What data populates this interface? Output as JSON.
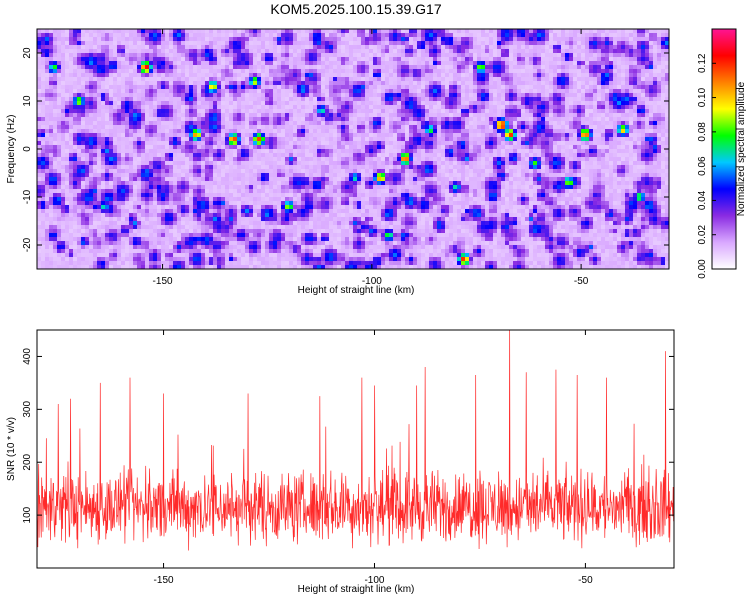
{
  "title": "KOM5.2025.100.15.39.G17",
  "chart_data": [
    {
      "type": "heatmap",
      "xlabel": "Height of straight line (km)",
      "ylabel": "Frequency (Hz)",
      "xlim": [
        -180,
        -29
      ],
      "ylim": [
        -25,
        25
      ],
      "x_ticks": [
        -150,
        -100,
        -50
      ],
      "y_ticks": [
        -20,
        -10,
        0,
        10,
        20
      ],
      "colorbar": {
        "label": "Normalized spectral amplitude",
        "range": [
          0,
          0.14
        ],
        "ticks": [
          0.0,
          0.02,
          0.04,
          0.06,
          0.08,
          0.1,
          0.12
        ],
        "tick_labels": [
          "0.00",
          "0.02",
          "0.04",
          "0.06",
          "0.08",
          "0.10",
          "0.12"
        ],
        "colors": [
          "#ffffff",
          "#d9a8ff",
          "#8a2be2",
          "#0000ff",
          "#00c8ff",
          "#00ff00",
          "#ffff00",
          "#ff8000",
          "#ff0000",
          "#ff1493"
        ]
      },
      "background_level": 0.025,
      "peaks": [
        {
          "x": -154,
          "y": 17,
          "v": 0.13
        },
        {
          "x": -142,
          "y": 3,
          "v": 0.11
        },
        {
          "x": -138,
          "y": 13,
          "v": 0.1
        },
        {
          "x": -133,
          "y": 2,
          "v": 0.12
        },
        {
          "x": -128,
          "y": 14,
          "v": 0.09
        },
        {
          "x": -127,
          "y": 2,
          "v": 0.12
        },
        {
          "x": -120,
          "y": -12,
          "v": 0.09
        },
        {
          "x": -112,
          "y": 8,
          "v": 0.07
        },
        {
          "x": -104,
          "y": -6,
          "v": 0.07
        },
        {
          "x": -98,
          "y": -6,
          "v": 0.11
        },
        {
          "x": -96,
          "y": -18,
          "v": 0.08
        },
        {
          "x": -92,
          "y": -2,
          "v": 0.12
        },
        {
          "x": -86,
          "y": 4,
          "v": 0.08
        },
        {
          "x": -80,
          "y": -8,
          "v": 0.07
        },
        {
          "x": -78,
          "y": -23,
          "v": 0.12
        },
        {
          "x": -74,
          "y": 17,
          "v": 0.09
        },
        {
          "x": -69,
          "y": 5,
          "v": 0.13
        },
        {
          "x": -67,
          "y": 3,
          "v": 0.12
        },
        {
          "x": -61,
          "y": -3,
          "v": 0.08
        },
        {
          "x": -53,
          "y": -7,
          "v": 0.09
        },
        {
          "x": -49,
          "y": 3,
          "v": 0.12
        },
        {
          "x": -40,
          "y": 4,
          "v": 0.1
        },
        {
          "x": -36,
          "y": -10,
          "v": 0.08
        },
        {
          "x": -164,
          "y": -12,
          "v": 0.07
        },
        {
          "x": -170,
          "y": 10,
          "v": 0.09
        },
        {
          "x": -176,
          "y": 17,
          "v": 0.08
        }
      ]
    },
    {
      "type": "line",
      "xlabel": "Height of straight line (km)",
      "ylabel": "SNR (10 * v/v)",
      "xlim": [
        -180,
        -29
      ],
      "ylim": [
        0,
        450
      ],
      "x_ticks": [
        -150,
        -100,
        -50
      ],
      "y_ticks": [
        100,
        200,
        300,
        400
      ],
      "color": "#ff2a2a",
      "baseline": 115,
      "spread": 55,
      "peaks": [
        {
          "x": -175,
          "y": 310
        },
        {
          "x": -172,
          "y": 320
        },
        {
          "x": -165,
          "y": 350
        },
        {
          "x": -158,
          "y": 360
        },
        {
          "x": -150,
          "y": 330
        },
        {
          "x": -130,
          "y": 330
        },
        {
          "x": -113,
          "y": 325
        },
        {
          "x": -103,
          "y": 360
        },
        {
          "x": -100,
          "y": 345
        },
        {
          "x": -90,
          "y": 345
        },
        {
          "x": -88,
          "y": 380
        },
        {
          "x": -76,
          "y": 365
        },
        {
          "x": -68,
          "y": 455
        },
        {
          "x": -64,
          "y": 370
        },
        {
          "x": -57,
          "y": 375
        },
        {
          "x": -52,
          "y": 365
        },
        {
          "x": -45,
          "y": 360
        },
        {
          "x": -31,
          "y": 410
        }
      ]
    }
  ]
}
